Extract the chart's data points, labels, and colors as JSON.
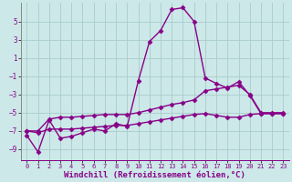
{
  "xlabel": "Windchill (Refroidissement éolien,°C)",
  "background_color": "#cce8e8",
  "grid_color": "#aacccc",
  "line_color": "#880088",
  "spine_color": "#888888",
  "ylim": [
    -10.2,
    7.0
  ],
  "xlim": [
    -0.5,
    23.5
  ],
  "yticks": [
    -9,
    -7,
    -5,
    -3,
    -1,
    1,
    3,
    5
  ],
  "xticks": [
    0,
    1,
    2,
    3,
    4,
    5,
    6,
    7,
    8,
    9,
    10,
    11,
    12,
    13,
    14,
    15,
    16,
    17,
    18,
    19,
    20,
    21,
    22,
    23
  ],
  "line1_x": [
    0,
    1,
    2,
    3,
    4,
    5,
    6,
    7,
    8,
    9,
    10,
    11,
    12,
    13,
    14,
    15,
    16,
    17,
    18,
    19,
    20,
    21,
    22,
    23
  ],
  "line1_y": [
    -7.5,
    -9.3,
    -5.8,
    -7.8,
    -7.6,
    -7.2,
    -6.8,
    -7.0,
    -6.2,
    -6.5,
    -1.5,
    2.8,
    4.0,
    6.3,
    6.5,
    5.0,
    -1.2,
    -1.8,
    -2.3,
    -1.6,
    -3.1,
    -5.1,
    -5.1,
    -5.1
  ],
  "line2_x": [
    0,
    1,
    2,
    3,
    4,
    5,
    6,
    7,
    8,
    9,
    10,
    11,
    12,
    13,
    14,
    15,
    16,
    17,
    18,
    19,
    20,
    21,
    22,
    23
  ],
  "line2_y": [
    -7.0,
    -7.0,
    -5.7,
    -5.5,
    -5.5,
    -5.4,
    -5.3,
    -5.2,
    -5.2,
    -5.2,
    -5.0,
    -4.7,
    -4.4,
    -4.1,
    -3.9,
    -3.6,
    -2.6,
    -2.4,
    -2.2,
    -2.0,
    -3.0,
    -5.0,
    -5.0,
    -5.0
  ],
  "line3_x": [
    0,
    1,
    2,
    3,
    4,
    5,
    6,
    7,
    8,
    9,
    10,
    11,
    12,
    13,
    14,
    15,
    16,
    17,
    18,
    19,
    20,
    21,
    22,
    23
  ],
  "line3_y": [
    -7.0,
    -7.2,
    -6.8,
    -6.8,
    -6.8,
    -6.7,
    -6.6,
    -6.5,
    -6.4,
    -6.4,
    -6.2,
    -6.0,
    -5.8,
    -5.6,
    -5.4,
    -5.2,
    -5.1,
    -5.3,
    -5.5,
    -5.5,
    -5.2,
    -5.1,
    -5.1,
    -5.1
  ],
  "marker": "D",
  "markersize": 2.5,
  "linewidth": 1.0,
  "tick_fontsize": 5.5,
  "label_fontsize": 6.5
}
